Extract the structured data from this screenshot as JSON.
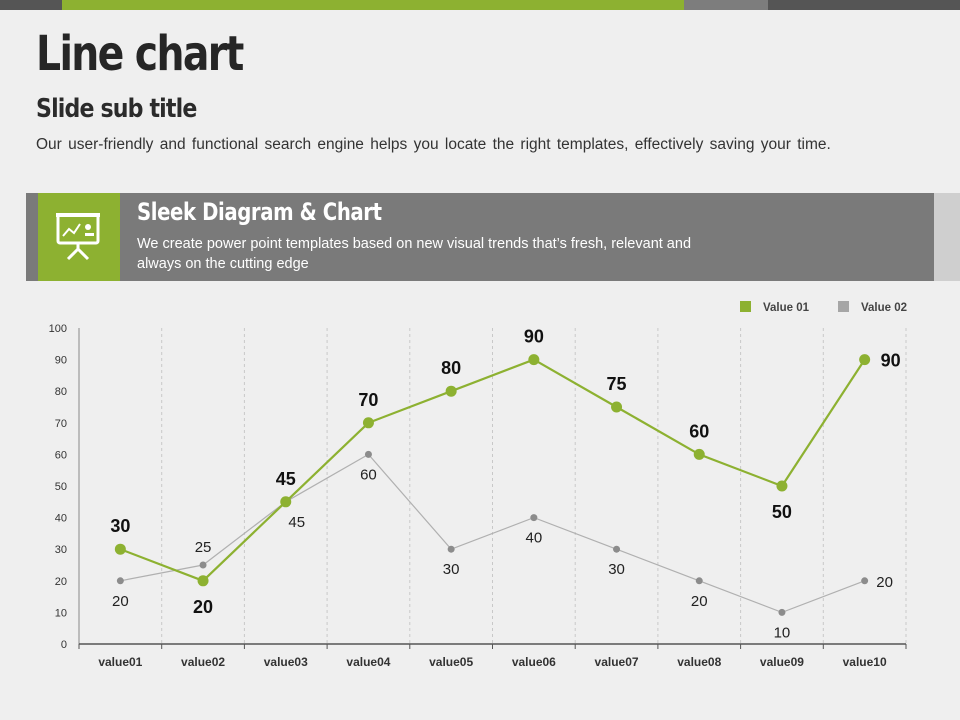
{
  "slide": {
    "title": "Line chart",
    "subtitle": "Slide sub title",
    "description": "Our user-friendly and functional search engine helps you locate the right templates, effectively saving your time."
  },
  "banner": {
    "icon": "presentation-board-icon",
    "title": "Sleek Diagram & Chart",
    "text": "We create power point templates based on new visual trends that’s fresh, relevant and always on the cutting edge"
  },
  "colors": {
    "accent": "#8db131",
    "gray_series": "#a6a6a6",
    "banner": "#7a7a7a",
    "dark": "#555555"
  },
  "chart_data": {
    "type": "line",
    "categories": [
      "value01",
      "value02",
      "value03",
      "value04",
      "value05",
      "value06",
      "value07",
      "value08",
      "value09",
      "value10"
    ],
    "series": [
      {
        "name": "Value 01",
        "values": [
          30,
          20,
          45,
          70,
          80,
          90,
          75,
          60,
          50,
          90
        ]
      },
      {
        "name": "Value 02",
        "values": [
          20,
          25,
          45,
          60,
          30,
          40,
          30,
          20,
          10,
          20
        ]
      }
    ],
    "ylim": [
      0,
      100
    ],
    "yticks": [
      0,
      10,
      20,
      30,
      40,
      50,
      60,
      70,
      80,
      90,
      100
    ],
    "grid": "vertical dashed",
    "legend": "top-right",
    "data_labels": true
  }
}
